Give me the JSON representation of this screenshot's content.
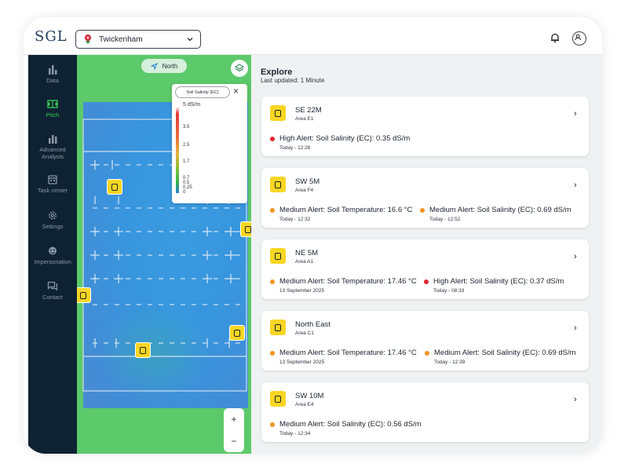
{
  "app": {
    "logo": "SGL"
  },
  "header": {
    "venue": "Twickenham"
  },
  "sidebar": {
    "items": [
      {
        "label": "Data",
        "icon": "bar-chart-icon",
        "active": false
      },
      {
        "label": "Pitch",
        "icon": "pitch-icon",
        "active": true
      },
      {
        "label": "Advanced Analysis",
        "icon": "analysis-icon",
        "active": false
      },
      {
        "label": "Task center",
        "icon": "calendar-icon",
        "active": false
      },
      {
        "label": "Settings",
        "icon": "gear-icon",
        "active": false
      },
      {
        "label": "Impersonation",
        "icon": "mask-icon",
        "active": false
      },
      {
        "label": "Contact",
        "icon": "chat-icon",
        "active": false
      }
    ]
  },
  "map": {
    "north_label": "North",
    "legend": {
      "layer": "Soil Salinity (EC)",
      "unit": "5 dS/m",
      "ticks": [
        "3.5",
        "2.5",
        "1.7",
        "0.7",
        "0.5",
        "0.25",
        "0"
      ]
    },
    "zoom_in": "+",
    "zoom_out": "−"
  },
  "explore": {
    "title": "Explore",
    "last_updated": "Last updated: 1 Minute",
    "cards": [
      {
        "name": "SE 22M",
        "area": "Area E1",
        "alerts": [
          {
            "level": "high",
            "text": "High Alert: Soil Salinity (EC): 0.35 dS/m",
            "time": "Today - 12:26"
          }
        ]
      },
      {
        "name": "SW 5M",
        "area": "Area F4",
        "alerts": [
          {
            "level": "medium",
            "text": "Medium Alert: Soil Temperature: 16.6 °C",
            "time": "Today - 12:32"
          },
          {
            "level": "medium",
            "text": "Medium Alert: Soil Salinity (EC): 0.69 dS/m",
            "time": "Today - 12:52"
          }
        ]
      },
      {
        "name": "NE 5M",
        "area": "Area A1",
        "alerts": [
          {
            "level": "medium",
            "text": "Medium Alert: Soil Temperature: 17.46 °C",
            "time": "13 September 2025"
          },
          {
            "level": "high",
            "text": "High Alert: Soil Salinity (EC): 0.37 dS/m",
            "time": "Today - 08:33"
          }
        ]
      },
      {
        "name": "North East",
        "area": "Area C1",
        "alerts": [
          {
            "level": "medium",
            "text": "Medium Alert: Soil Temperature: 17.46 °C",
            "time": "13 September 2025"
          },
          {
            "level": "medium",
            "text": "Medium Alert: Soil Salinity (EC): 0.69 dS/m",
            "time": "Today - 12:39"
          }
        ]
      },
      {
        "name": "SW 10M",
        "area": "Area E4",
        "alerts": [
          {
            "level": "medium",
            "text": "Medium Alert: Soil Salinity (EC): 0.56 dS/m",
            "time": "Today - 12:34"
          }
        ]
      }
    ]
  },
  "colors": {
    "high": "#e0262f",
    "medium": "#f29420",
    "accent": "#35c957",
    "sidebar": "#0f2233",
    "sensor": "#f7d623"
  }
}
